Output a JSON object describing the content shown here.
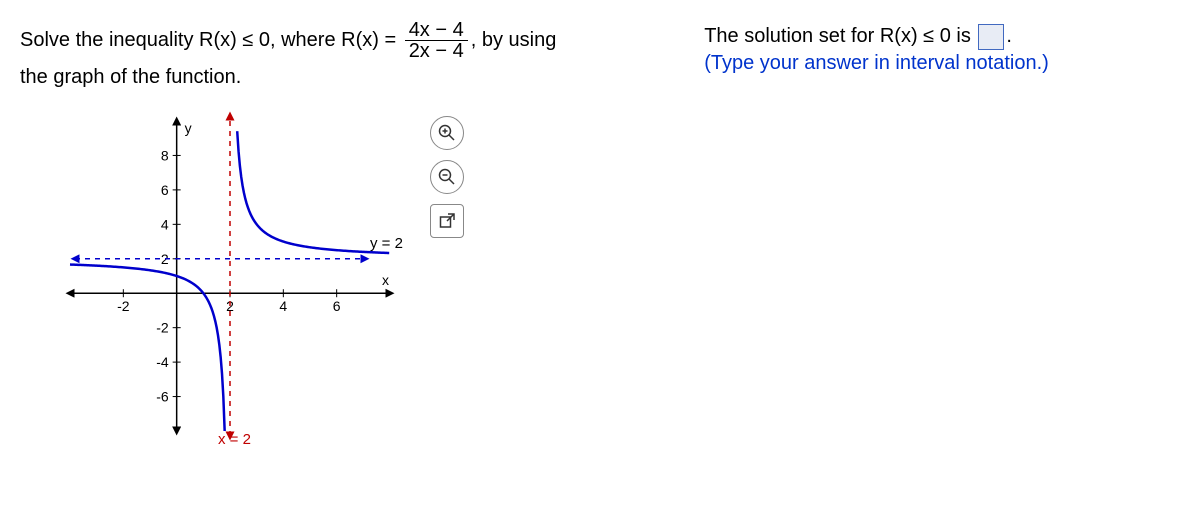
{
  "problem": {
    "prefix": "Solve the inequality R(x) ≤ 0, where R(x) = ",
    "numerator": "4x − 4",
    "denominator": "2x − 4",
    "suffix": ", by using",
    "line2": "the graph of the function."
  },
  "solution": {
    "prefix": "The solution set for R(x) ≤ 0 is ",
    "suffix": ".",
    "instruction": "(Type your answer in interval notation.)"
  },
  "graph": {
    "xmin": -4,
    "xmax": 8,
    "ymin": -8,
    "ymax": 10,
    "x_ticks": [
      -2,
      2,
      4,
      6
    ],
    "y_ticks": [
      -6,
      -4,
      -2,
      2,
      4,
      6,
      8
    ],
    "vertical_asymptote": 2,
    "horizontal_asymptote": 2,
    "asymptote_color": "#c00000",
    "curve_color": "#0000cc",
    "axis_color": "#000000",
    "grid_color": "#cccccc",
    "x_eq_label": "x = 2",
    "y_eq_label": "y = 2",
    "x_axis_label": "x",
    "y_axis_label": "y"
  }
}
